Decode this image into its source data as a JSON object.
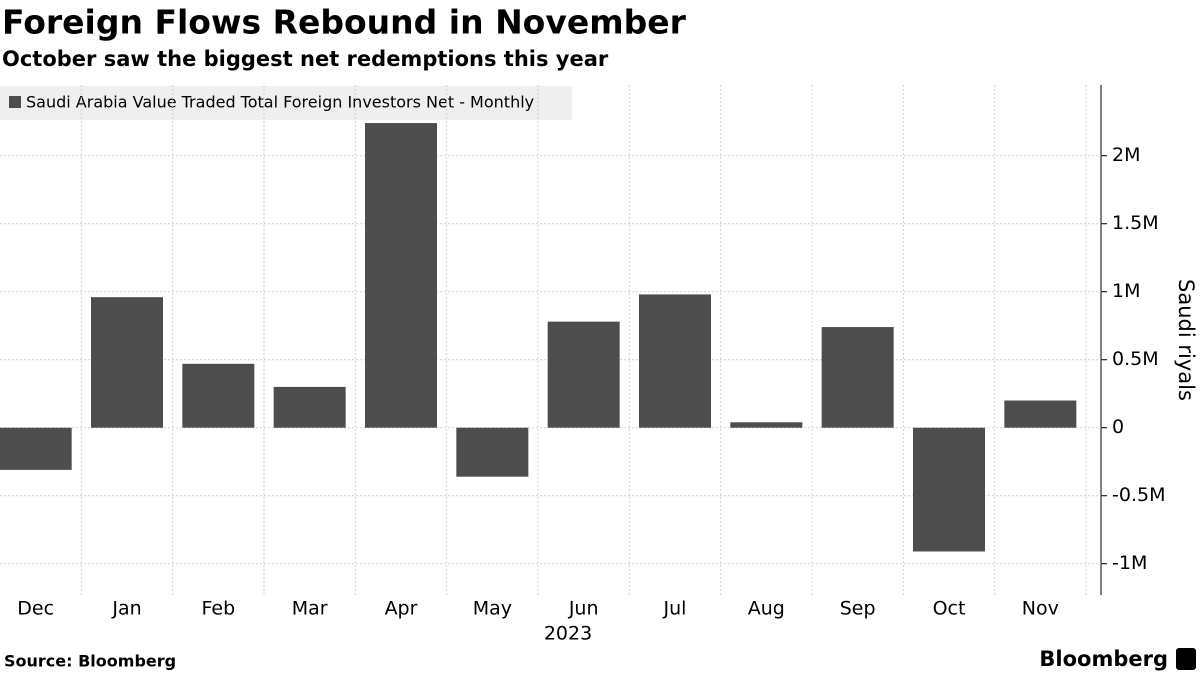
{
  "chart_data": {
    "type": "bar",
    "title": "Foreign Flows Rebound in November",
    "subtitle": "October saw the biggest net redemptions this year",
    "legend_label": "Saudi Arabia Value Traded Total Foreign Investors Net - Monthly",
    "y_label": "Saudi riyals",
    "x_group_label": "2023",
    "source": "Source: Bloomberg",
    "brand": "Bloomberg",
    "categories": [
      "Dec",
      "Jan",
      "Feb",
      "Mar",
      "Apr",
      "May",
      "Jun",
      "Jul",
      "Aug",
      "Sep",
      "Oct",
      "Nov"
    ],
    "values": [
      -310000,
      960000,
      470000,
      300000,
      2240000,
      -360000,
      780000,
      980000,
      40000,
      740000,
      -910000,
      200000
    ],
    "color": "#4d4d4d",
    "ylim": [
      -1230000,
      2520000
    ],
    "yticks": [
      {
        "value": -1000000,
        "label": "-1M"
      },
      {
        "value": -500000,
        "label": "-0.5M"
      },
      0,
      {
        "value": 500000,
        "label": "0.5M"
      },
      {
        "value": 1000000,
        "label": "1M"
      },
      {
        "value": 1500000,
        "label": "1.5M"
      },
      {
        "value": 2000000,
        "label": "2M"
      }
    ],
    "grid": true
  }
}
